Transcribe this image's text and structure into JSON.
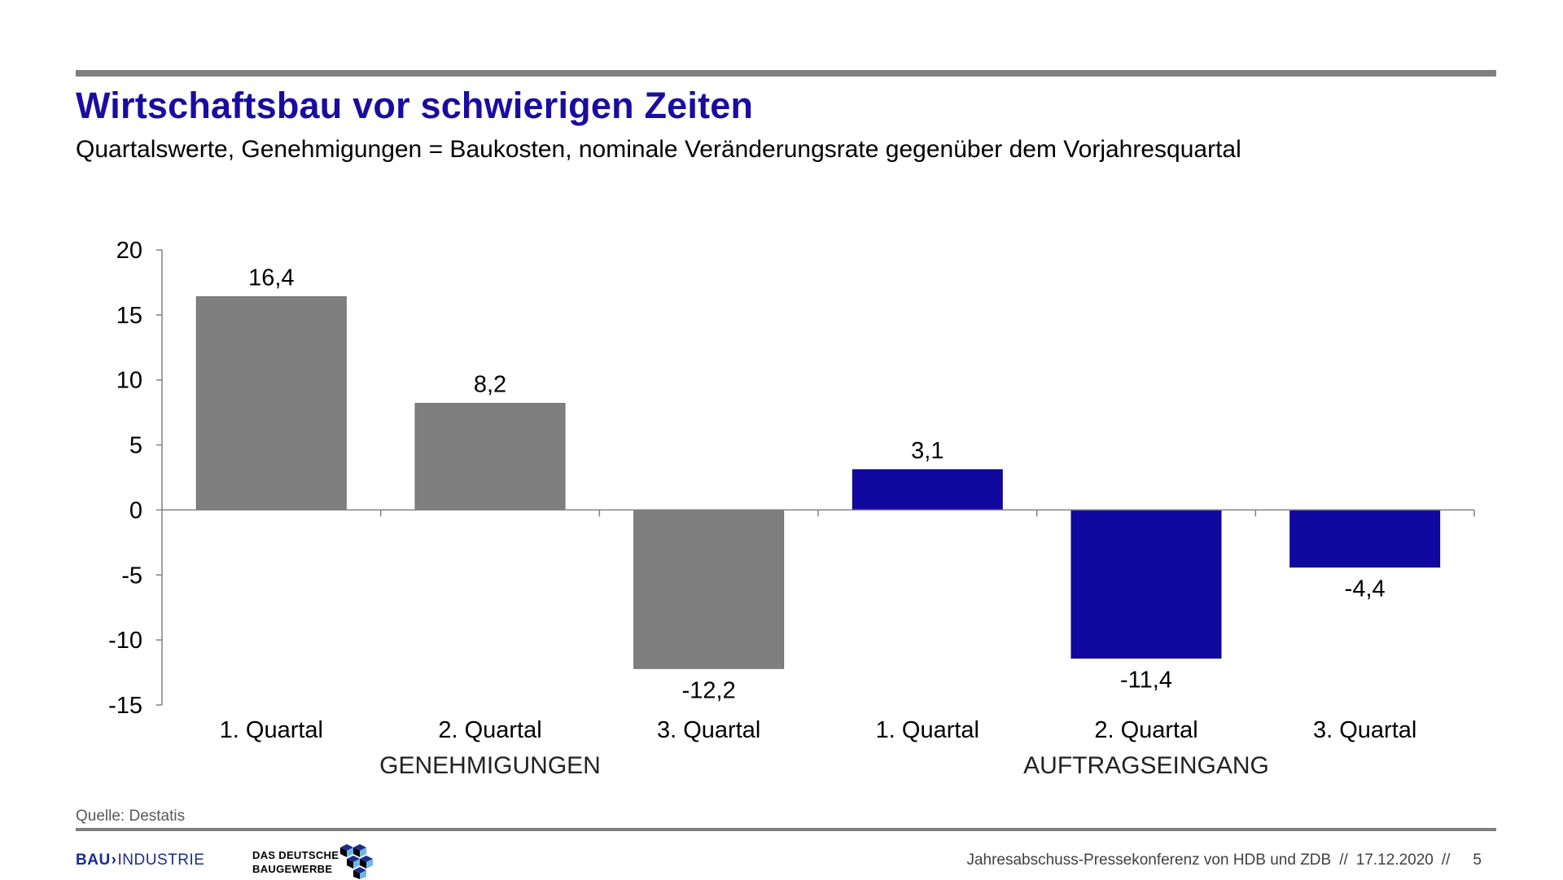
{
  "slide": {
    "title": "Wirtschaftsbau vor schwierigen Zeiten",
    "subtitle": "Quartalswerte, Genehmigungen = Baukosten, nominale Veränderungsrate gegenüber dem Vorjahresquartal",
    "source": "Quelle: Destatis",
    "footer_text": "Jahresabschuss-Pressekonferenz von HDB und ZDB",
    "footer_separator": "//",
    "footer_date": "17.12.2020",
    "page_number": "5"
  },
  "logos": {
    "bauindustrie_bold": "BAU",
    "bauindustrie_rest": "INDUSTRIE",
    "baugewerbe_line1": "DAS DEUTSCHE",
    "baugewerbe_line2": "BAUGEWERBE"
  },
  "colors": {
    "title": "#1a0ca0",
    "genehmigungen": "#7f7f7f",
    "auftragseingang": "#1108a0",
    "rule": "#7f7f7f"
  },
  "chart_data": {
    "type": "bar",
    "categories": [
      "1. Quartal",
      "2. Quartal",
      "3. Quartal",
      "1. Quartal",
      "2. Quartal",
      "3. Quartal"
    ],
    "values": [
      16.4,
      8.2,
      -12.2,
      3.1,
      -11.4,
      -4.4
    ],
    "data_labels": [
      "16,4",
      "8,2",
      "-12,2",
      "3,1",
      "-11,4",
      "-4,4"
    ],
    "groups": [
      {
        "label": "GENEHMIGUNGEN",
        "indices": [
          0,
          1,
          2
        ],
        "color": "#7f7f7f"
      },
      {
        "label": "AUFTRAGSEINGANG",
        "indices": [
          3,
          4,
          5
        ],
        "color": "#1108a0"
      }
    ],
    "yticks": [
      20,
      15,
      10,
      5,
      0,
      -5,
      -10,
      -15
    ],
    "ylim": [
      -15,
      20
    ],
    "grid": false,
    "legend": "none"
  }
}
